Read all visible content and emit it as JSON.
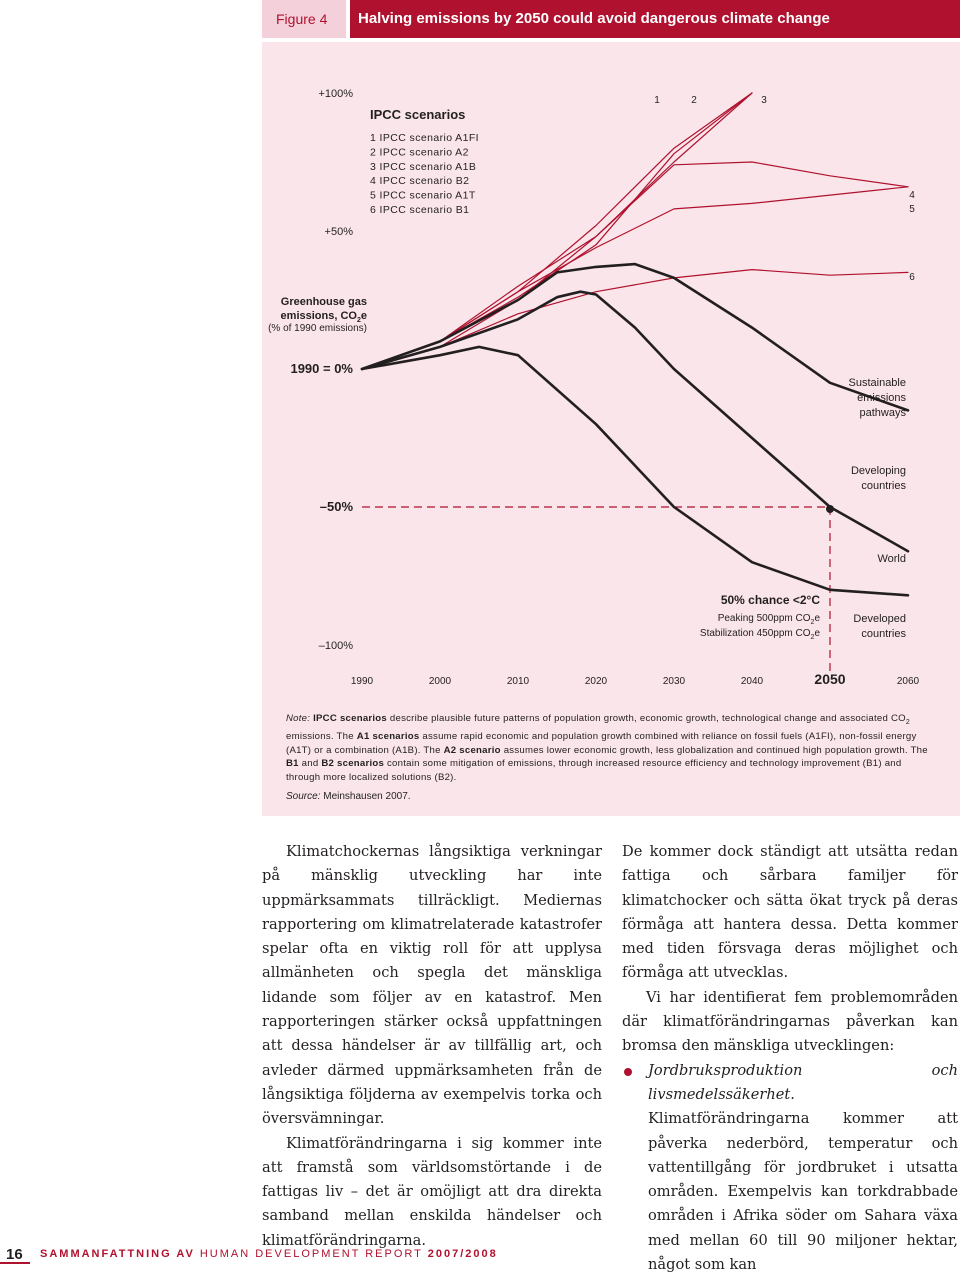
{
  "header": {
    "figure_label": "Figure 4",
    "title": "Halving emissions by 2050 could avoid dangerous climate change"
  },
  "chart_data": {
    "type": "line",
    "x_ticks": [
      "1990",
      "2000",
      "2010",
      "2020",
      "2030",
      "2040",
      "2050",
      "2060"
    ],
    "y_ticks": [
      "+100%",
      "+50%",
      "1990 = 0%",
      "–50%",
      "–100%"
    ],
    "ylabel": [
      "Greenhouse gas",
      "emissions, CO2e",
      "(% of 1990 emissions)"
    ],
    "ylim": [
      -100,
      100
    ],
    "xlim": [
      1990,
      2060
    ],
    "legend_title": "IPCC scenarios",
    "legend_items": [
      "1 IPCC scenario A1FI",
      "2 IPCC scenario A2",
      "3 IPCC scenario A1B",
      "4 IPCC scenario B2",
      "5 IPCC scenario A1T",
      "6 IPCC scenario B1"
    ],
    "series": [
      {
        "name": "1",
        "x": [
          2000,
          2010,
          2020,
          2030,
          2040
        ],
        "y": [
          8,
          25,
          48,
          75,
          100
        ]
      },
      {
        "name": "2",
        "x": [
          2000,
          2010,
          2020,
          2030,
          2040
        ],
        "y": [
          10,
          26,
          45,
          78,
          100
        ]
      },
      {
        "name": "3",
        "x": [
          2000,
          2010,
          2020,
          2030,
          2040
        ],
        "y": [
          10,
          28,
          52,
          80,
          100
        ]
      },
      {
        "name": "4",
        "x": [
          2000,
          2010,
          2020,
          2030,
          2040,
          2050,
          2060
        ],
        "y": [
          10,
          30,
          48,
          74,
          75,
          70,
          66
        ]
      },
      {
        "name": "5",
        "x": [
          2000,
          2010,
          2020,
          2030,
          2040,
          2050,
          2060
        ],
        "y": [
          10,
          28,
          44,
          58,
          60,
          63,
          66
        ]
      },
      {
        "name": "6",
        "x": [
          2000,
          2010,
          2020,
          2030,
          2040,
          2050,
          2060
        ],
        "y": [
          8,
          20,
          28,
          33,
          36,
          34,
          35
        ]
      },
      {
        "name": "World",
        "x": [
          1990,
          2000,
          2010,
          2015,
          2018,
          2020,
          2025,
          2030,
          2040,
          2050,
          2060
        ],
        "y": [
          0,
          8,
          18,
          26,
          28,
          27,
          15,
          0,
          -25,
          -50,
          -66
        ]
      },
      {
        "name": "Developing countries",
        "x": [
          1990,
          2000,
          2010,
          2015,
          2020,
          2025,
          2030,
          2040,
          2050,
          2060
        ],
        "y": [
          0,
          10,
          25,
          35,
          37,
          38,
          33,
          15,
          -5,
          -15
        ]
      },
      {
        "name": "Developed countries",
        "x": [
          1990,
          2000,
          2005,
          2010,
          2020,
          2030,
          2040,
          2050,
          2060
        ],
        "y": [
          0,
          5,
          8,
          5,
          -20,
          -50,
          -70,
          -80,
          -82
        ]
      }
    ],
    "right_labels": {
      "top": [
        "1",
        "2",
        "3"
      ],
      "side": [
        "4",
        "5",
        "6"
      ],
      "sustainable": [
        "Sustainable",
        "emissions",
        "pathways"
      ],
      "developing": [
        "Developing",
        "countries"
      ],
      "world": "World",
      "developed": [
        "Developed",
        "countries"
      ]
    },
    "annotation": {
      "title": "50% chance <2°C",
      "line1": "Peaking 500ppm CO2e",
      "line2": "Stabilization 450ppm CO2e"
    },
    "reference": {
      "y": -50,
      "x": 2050,
      "style": "dashed"
    },
    "colors": {
      "scenario": "#b0112e",
      "pathway": "#231f20",
      "panel": "#f9e5ea",
      "accent": "#b0112e"
    }
  },
  "note": {
    "label": "Note:",
    "term_ipcc": "IPCC scenarios",
    "text_1": " describe plausible future patterns of population growth, economic growth, technological change and associated CO",
    "sub_2": "2",
    "text_2": " emissions. The ",
    "term_a1": "A1 scenarios",
    "text_3": " assume rapid economic and population growth combined with reliance on fossil fuels (A1FI), non-fossil energy (A1T) or a combination (A1B). The ",
    "term_a2": "A2 scenario",
    "text_4": " assumes lower economic growth, less globalization and continued high population growth. The ",
    "term_b1": "B1",
    "text_and": " and ",
    "term_b2": "B2 scenarios",
    "text_5": " contain some mitigation of emissions, through increased resource efficiency and technology improvement (B1) and through more localized solutions (B2)."
  },
  "source": {
    "label": "Source:",
    "text": " Meinshausen 2007."
  },
  "body": {
    "left_p1": "Klimatchockernas långsiktiga verkningar på mänsklig utveckling har inte uppmärksammats tillräckligt. Mediernas rapportering om klimatrelaterade katastrofer spelar ofta en viktig roll för att upplysa allmänheten och spegla det mänskliga lidande som följer av en katastrof. Men rapporteringen stärker också uppfattningen att dessa händelser är av tillfällig art, och avleder därmed uppmärksamheten från de långsiktiga följderna av exempelvis torka och översvämningar.",
    "left_p2": "Klimatförändringarna i sig kommer inte att framstå som världsomstörtande i de fattigas liv – det är omöjligt att dra direkta samband mellan enskilda händelser och klimatförändringarna.",
    "right_p1": "De kommer dock ständigt att utsätta redan fattiga och sårbara familjer för klimatchocker och sätta ökat tryck på deras förmåga att hantera dessa. Detta kommer med tiden försvaga deras möjlighet och förmåga att utvecklas.",
    "right_p2": "Vi har identifierat fem problemområden där klimatförändringarnas påverkan kan bromsa den mänskliga utvecklingen:",
    "bullet_title": "Jordbruksproduktion och livsmedelssäkerhet.",
    "bullet_text": " Klimatförändringarna kommer att påverka nederbörd, temperatur och vattentillgång för jordbruket i utsatta områden. Exempelvis kan torkdrabbade områden i Afrika söder om Sahara växa med mellan 60 till 90 miljoner hektar, något som kan"
  },
  "footer": {
    "page_number": "16",
    "run_bold": "SAMMANFATTNING AV",
    "run_rest": " HUMAN DEVELOPMENT REPORT ",
    "run_year": "2007/2008"
  }
}
